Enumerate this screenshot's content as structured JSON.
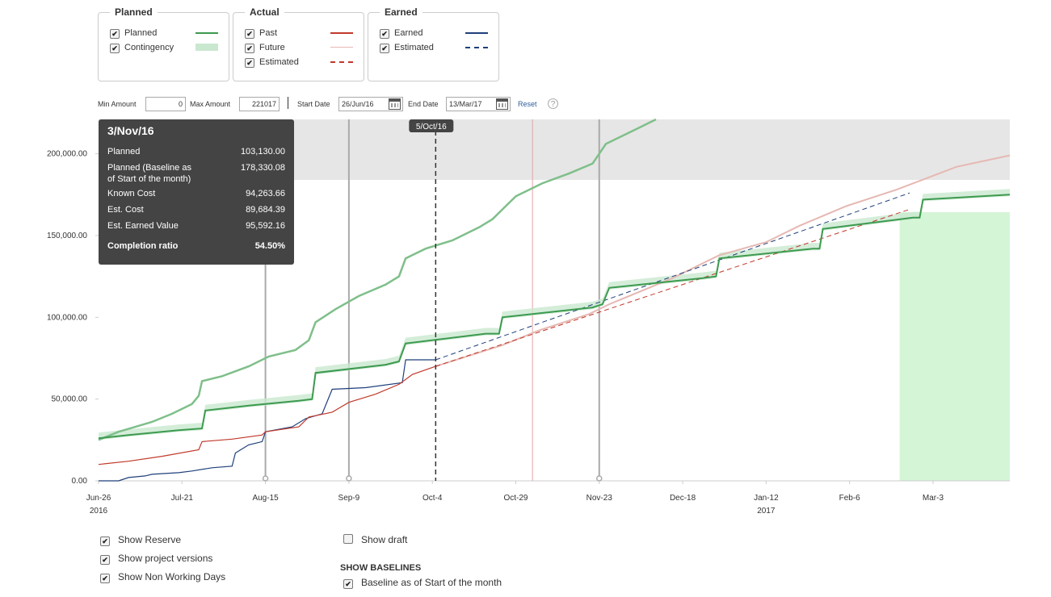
{
  "legend": {
    "planned": {
      "title": "Planned",
      "items": [
        {
          "label": "Planned",
          "checked": true
        },
        {
          "label": "Contingency",
          "checked": true
        }
      ]
    },
    "actual": {
      "title": "Actual",
      "items": [
        {
          "label": "Past",
          "checked": true
        },
        {
          "label": "Future",
          "checked": true
        },
        {
          "label": "Estimated",
          "checked": true
        }
      ]
    },
    "earned": {
      "title": "Earned",
      "items": [
        {
          "label": "Earned",
          "checked": true
        },
        {
          "label": "Estimated",
          "checked": true
        }
      ]
    }
  },
  "controls": {
    "min_amount_label": "Min Amount",
    "min_amount_value": "0",
    "max_amount_label": "Max Amount",
    "max_amount_value": "221017",
    "start_date_label": "Start Date",
    "start_date_value": "26/Jun/16",
    "end_date_label": "End Date",
    "end_date_value": "13/Mar/17",
    "reset_label": "Reset",
    "help_label": "?"
  },
  "tooltip": {
    "title": "3/Nov/16",
    "rows": [
      {
        "label": "Planned",
        "value": "103,130.00"
      },
      {
        "label": "Planned (Baseline as",
        "value": "178,330.08"
      },
      {
        "label": "of Start of the month)",
        "value": ""
      },
      {
        "label": "Known Cost",
        "value": "94,263.66"
      },
      {
        "label": "Est. Cost",
        "value": "89,684.39"
      },
      {
        "label": "Est. Earned Value",
        "value": "95,592.16"
      },
      {
        "label": "Completion ratio",
        "value": "54.50%"
      }
    ]
  },
  "today_marker_label": "5/Oct/16",
  "options": {
    "show_reserve": {
      "label": "Show Reserve",
      "checked": true
    },
    "show_project_versions": {
      "label": "Show project versions",
      "checked": true
    },
    "show_non_working_days": {
      "label": "Show Non Working Days",
      "checked": true
    },
    "show_draft": {
      "label": "Show draft",
      "checked": false
    },
    "baselines_title": "SHOW BASELINES",
    "baseline_start_month": {
      "label": "Baseline as of Start of the month",
      "checked": true
    }
  },
  "colors": {
    "planned": "#3d9a4f",
    "contingency": "#c9e8cf",
    "baseline": "#7fbf8a",
    "actual_past": "#c0392b",
    "actual_future": "#e6b8b3",
    "earned": "#1f3f7a",
    "reserve_band": "#e6e6e6",
    "non_working": "#d4f5d6",
    "tooltip_bg": "#444444",
    "link": "#2f5d9a"
  },
  "chart_data": {
    "type": "line",
    "x_type": "date",
    "xlim": [
      "2016-06-26",
      "2017-03-26"
    ],
    "ylim": [
      0,
      221017
    ],
    "y_ticks": [
      0,
      50000,
      100000,
      150000,
      200000
    ],
    "y_tick_labels": [
      "0.00",
      "50,000.00",
      "100,000.00",
      "150,000.00",
      "200,000.00"
    ],
    "x_ticks": [
      {
        "date": "2016-06-26",
        "label": "Jun-26",
        "sub": "2016"
      },
      {
        "date": "2016-07-21",
        "label": "Jul-21",
        "sub": ""
      },
      {
        "date": "2016-08-15",
        "label": "Aug-15",
        "sub": ""
      },
      {
        "date": "2016-09-09",
        "label": "Sep-9",
        "sub": ""
      },
      {
        "date": "2016-10-04",
        "label": "Oct-4",
        "sub": ""
      },
      {
        "date": "2016-10-29",
        "label": "Oct-29",
        "sub": ""
      },
      {
        "date": "2016-11-23",
        "label": "Nov-23",
        "sub": ""
      },
      {
        "date": "2016-12-18",
        "label": "Dec-18",
        "sub": ""
      },
      {
        "date": "2017-01-12",
        "label": "Jan-12",
        "sub": "2017"
      },
      {
        "date": "2017-02-06",
        "label": "Feb-6",
        "sub": ""
      },
      {
        "date": "2017-03-03",
        "label": "Mar-3",
        "sub": ""
      }
    ],
    "reserve_band": [
      184000,
      221017
    ],
    "non_working_range": [
      "2017-02-21",
      "2017-03-26"
    ],
    "version_lines": [
      "2016-08-15",
      "2016-09-09",
      "2016-11-23"
    ],
    "today_line": "2016-10-05",
    "marker_line": "2016-10-34",
    "series": [
      {
        "key": "baseline",
        "points": [
          [
            "2016-06-26",
            25000
          ],
          [
            "2016-07-02",
            30000
          ],
          [
            "2016-07-07",
            33000
          ],
          [
            "2016-07-12",
            36000
          ],
          [
            "2016-07-18",
            41000
          ],
          [
            "2016-07-24",
            47000
          ],
          [
            "2016-07-26",
            52000
          ],
          [
            "2016-07-27",
            61000
          ],
          [
            "2016-08-02",
            64000
          ],
          [
            "2016-08-10",
            70000
          ],
          [
            "2016-08-16",
            76000
          ],
          [
            "2016-08-24",
            80000
          ],
          [
            "2016-08-28",
            86000
          ],
          [
            "2016-08-30",
            97000
          ],
          [
            "2016-09-05",
            105000
          ],
          [
            "2016-09-12",
            113000
          ],
          [
            "2016-09-20",
            120000
          ],
          [
            "2016-09-24",
            125000
          ],
          [
            "2016-09-26",
            136000
          ],
          [
            "2016-10-02",
            142000
          ],
          [
            "2016-10-10",
            147000
          ],
          [
            "2016-10-18",
            155000
          ],
          [
            "2016-10-22",
            160000
          ],
          [
            "2016-10-25",
            166000
          ],
          [
            "2016-10-29",
            174000
          ],
          [
            "2016-11-06",
            182000
          ],
          [
            "2016-11-14",
            188000
          ],
          [
            "2016-11-21",
            194000
          ],
          [
            "2016-11-25",
            206000
          ],
          [
            "2016-12-04",
            215000
          ],
          [
            "2016-12-10",
            221017
          ]
        ]
      },
      {
        "key": "planned",
        "points": [
          [
            "2016-06-26",
            26000
          ],
          [
            "2016-07-05",
            28000
          ],
          [
            "2016-07-20",
            31000
          ],
          [
            "2016-07-27",
            32000
          ],
          [
            "2016-07-28",
            43000
          ],
          [
            "2016-08-10",
            46000
          ],
          [
            "2016-08-25",
            49000
          ],
          [
            "2016-08-29",
            50000
          ],
          [
            "2016-08-30",
            66000
          ],
          [
            "2016-09-20",
            71000
          ],
          [
            "2016-09-24",
            73000
          ],
          [
            "2016-09-26",
            84000
          ],
          [
            "2016-10-20",
            90000
          ],
          [
            "2016-10-24",
            90000
          ],
          [
            "2016-10-25",
            100000
          ],
          [
            "2016-11-21",
            106000
          ],
          [
            "2016-11-24",
            108000
          ],
          [
            "2016-11-26",
            118000
          ],
          [
            "2016-12-24",
            124000
          ],
          [
            "2016-12-28",
            125000
          ],
          [
            "2016-12-29",
            136000
          ],
          [
            "2017-01-26",
            142000
          ],
          [
            "2017-01-28",
            142000
          ],
          [
            "2017-01-29",
            154000
          ],
          [
            "2017-02-25",
            161000
          ],
          [
            "2017-02-27",
            161000
          ],
          [
            "2017-02-28",
            172000
          ],
          [
            "2017-03-26",
            175000
          ]
        ]
      },
      {
        "key": "actual_past",
        "points": [
          [
            "2016-06-26",
            10000
          ],
          [
            "2016-07-05",
            12000
          ],
          [
            "2016-07-15",
            15000
          ],
          [
            "2016-07-26",
            19000
          ],
          [
            "2016-07-27",
            24000
          ],
          [
            "2016-08-05",
            25500
          ],
          [
            "2016-08-14",
            28000
          ],
          [
            "2016-08-15",
            30000
          ],
          [
            "2016-08-25",
            33000
          ],
          [
            "2016-08-28",
            39000
          ],
          [
            "2016-09-04",
            42000
          ],
          [
            "2016-09-09",
            48000
          ],
          [
            "2016-09-17",
            53000
          ],
          [
            "2016-09-24",
            59000
          ],
          [
            "2016-09-28",
            65000
          ],
          [
            "2016-10-05",
            70000
          ]
        ]
      },
      {
        "key": "actual_future",
        "points": [
          [
            "2016-10-05",
            70000
          ],
          [
            "2016-10-25",
            83000
          ],
          [
            "2016-11-05",
            92000
          ],
          [
            "2016-11-20",
            102000
          ],
          [
            "2016-11-26",
            108000
          ],
          [
            "2016-12-15",
            124000
          ],
          [
            "2016-12-29",
            138000
          ],
          [
            "2017-01-12",
            146000
          ],
          [
            "2017-01-22",
            156000
          ],
          [
            "2017-02-05",
            168000
          ],
          [
            "2017-02-20",
            178000
          ],
          [
            "2017-03-10",
            192000
          ],
          [
            "2017-03-26",
            199000
          ]
        ]
      },
      {
        "key": "actual_estimated",
        "points": [
          [
            "2016-10-05",
            70000
          ],
          [
            "2017-02-24",
            166000
          ]
        ]
      },
      {
        "key": "earned",
        "points": [
          [
            "2016-06-26",
            0
          ],
          [
            "2016-07-02",
            0
          ],
          [
            "2016-07-05",
            2000
          ],
          [
            "2016-07-10",
            3000
          ],
          [
            "2016-07-12",
            4000
          ],
          [
            "2016-07-20",
            5000
          ],
          [
            "2016-07-24",
            6000
          ],
          [
            "2016-07-30",
            8000
          ],
          [
            "2016-08-05",
            9000
          ],
          [
            "2016-08-06",
            17000
          ],
          [
            "2016-08-10",
            22000
          ],
          [
            "2016-08-14",
            24000
          ],
          [
            "2016-08-15",
            30000
          ],
          [
            "2016-08-23",
            33000
          ],
          [
            "2016-08-27",
            38000
          ],
          [
            "2016-09-01",
            41000
          ],
          [
            "2016-09-04",
            56000
          ],
          [
            "2016-09-14",
            57000
          ],
          [
            "2016-09-25",
            60000
          ],
          [
            "2016-09-26",
            74000
          ],
          [
            "2016-10-05",
            74000
          ]
        ]
      },
      {
        "key": "earned_estimated",
        "points": [
          [
            "2016-10-05",
            74000
          ],
          [
            "2017-02-24",
            176000
          ]
        ]
      }
    ]
  }
}
